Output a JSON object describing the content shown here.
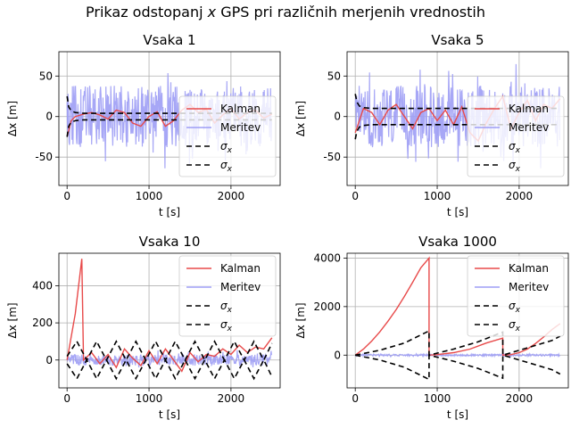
{
  "figure": {
    "title_pre": "Prikaz odstopanj ",
    "title_var": "x",
    "title_post": " GPS pri različnih merjenih vrednostih"
  },
  "chart_data": [
    {
      "type": "line",
      "title": "Vsaka 1",
      "xlabel": "t [s]",
      "ylabel": "Δx [m]",
      "xlim": [
        -100,
        2600
      ],
      "ylim": [
        -85,
        80
      ],
      "xticks": [
        0,
        1000,
        2000
      ],
      "yticks": [
        -50,
        0,
        50
      ],
      "grid": true,
      "legend_position": "right",
      "legend": [
        "Kalman",
        "Meritev",
        "σx",
        "σx"
      ],
      "meritev_amplitude": 38,
      "series": [
        {
          "name": "Kalman",
          "x": [
            0,
            50,
            100,
            200,
            300,
            400,
            500,
            600,
            700,
            800,
            900,
            1000,
            1100,
            1200,
            1300,
            1400,
            1500,
            1600,
            1700,
            1800,
            1900,
            2000,
            2100,
            2200,
            2300,
            2400,
            2500
          ],
          "y": [
            -25,
            -5,
            0,
            3,
            5,
            2,
            -3,
            8,
            5,
            -8,
            -12,
            0,
            6,
            -12,
            -5,
            8,
            15,
            5,
            9,
            -8,
            2,
            10,
            -3,
            5,
            8,
            -2,
            3
          ]
        },
        {
          "name": "σx",
          "x": [
            0,
            20,
            50,
            100,
            200,
            500,
            1000,
            2000,
            2500
          ],
          "y": [
            25,
            12,
            7,
            5,
            4,
            4,
            4,
            4,
            4
          ]
        },
        {
          "name": "σx",
          "x": [
            0,
            20,
            50,
            100,
            200,
            500,
            1000,
            2000,
            2500
          ],
          "y": [
            -25,
            -12,
            -7,
            -5,
            -4,
            -4,
            -4,
            -4,
            -4
          ]
        }
      ]
    },
    {
      "type": "line",
      "title": "Vsaka 5",
      "xlabel": "t [s]",
      "ylabel": "Δx [m]",
      "xlim": [
        -100,
        2600
      ],
      "ylim": [
        -85,
        80
      ],
      "xticks": [
        0,
        1000,
        2000
      ],
      "yticks": [
        -50,
        0,
        50
      ],
      "grid": true,
      "legend_position": "right",
      "legend": [
        "Kalman",
        "Meritev",
        "σx",
        "σx"
      ],
      "meritev_amplitude": 38,
      "series": [
        {
          "name": "Kalman",
          "x": [
            0,
            100,
            200,
            300,
            400,
            500,
            600,
            700,
            800,
            900,
            1000,
            1100,
            1200,
            1300,
            1400,
            1500,
            1600,
            1700,
            1800,
            1900,
            2000,
            2100,
            2200,
            2300,
            2400,
            2500
          ],
          "y": [
            -20,
            10,
            5,
            -10,
            8,
            15,
            0,
            -15,
            5,
            10,
            -5,
            8,
            -10,
            12,
            -20,
            -30,
            -8,
            10,
            25,
            -15,
            5,
            20,
            -5,
            15,
            10,
            22
          ]
        },
        {
          "name": "σx",
          "x": [
            0,
            20,
            50,
            100,
            200,
            500,
            1000,
            2000,
            2500
          ],
          "y": [
            28,
            18,
            13,
            11,
            10,
            10,
            10,
            10,
            10
          ]
        },
        {
          "name": "σx",
          "x": [
            0,
            20,
            50,
            100,
            200,
            500,
            1000,
            2000,
            2500
          ],
          "y": [
            -28,
            -18,
            -13,
            -11,
            -10,
            -10,
            -10,
            -10,
            -10
          ]
        }
      ]
    },
    {
      "type": "line",
      "title": "Vsaka 10",
      "xlabel": "t [s]",
      "ylabel": "Δx [m]",
      "xlim": [
        -100,
        2600
      ],
      "ylim": [
        -150,
        575
      ],
      "xticks": [
        0,
        1000,
        2000
      ],
      "yticks": [
        0,
        200,
        400
      ],
      "grid": true,
      "legend_position": "upper right",
      "legend": [
        "Kalman",
        "Meritev",
        "σx",
        "σx"
      ],
      "meritev_amplitude": 30,
      "series": [
        {
          "name": "Kalman",
          "x": [
            0,
            100,
            180,
            200,
            300,
            400,
            500,
            600,
            700,
            800,
            900,
            1000,
            1100,
            1200,
            1300,
            1400,
            1500,
            1600,
            1700,
            1800,
            1900,
            2000,
            2100,
            2200,
            2300,
            2400,
            2500
          ],
          "y": [
            0,
            250,
            545,
            0,
            40,
            -20,
            30,
            -40,
            60,
            10,
            -30,
            50,
            -20,
            60,
            0,
            -60,
            40,
            -10,
            30,
            20,
            60,
            30,
            80,
            40,
            70,
            60,
            120
          ]
        },
        {
          "name": "σx",
          "x": [
            0,
            120,
            240,
            241,
            360,
            480,
            481,
            600,
            720,
            721,
            840,
            960,
            961,
            1080,
            1200,
            1201,
            1320,
            1440,
            1441,
            1560,
            1680,
            1681,
            1800,
            1920,
            1921,
            2040,
            2160,
            2161,
            2280,
            2400,
            2401,
            2500
          ],
          "y": [
            20,
            100,
            0,
            0,
            100,
            0,
            0,
            100,
            0,
            0,
            100,
            0,
            0,
            100,
            0,
            0,
            100,
            0,
            0,
            100,
            0,
            0,
            100,
            0,
            0,
            100,
            0,
            0,
            100,
            0,
            0,
            90
          ]
        },
        {
          "name": "σx",
          "x": [
            0,
            120,
            240,
            241,
            360,
            480,
            481,
            600,
            720,
            721,
            840,
            960,
            961,
            1080,
            1200,
            1201,
            1320,
            1440,
            1441,
            1560,
            1680,
            1681,
            1800,
            1920,
            1921,
            2040,
            2160,
            2161,
            2280,
            2400,
            2401,
            2500
          ],
          "y": [
            -20,
            -100,
            0,
            0,
            -100,
            0,
            0,
            -100,
            0,
            0,
            -100,
            0,
            0,
            -100,
            0,
            0,
            -100,
            0,
            0,
            -100,
            0,
            0,
            -100,
            0,
            0,
            -100,
            0,
            0,
            -100,
            0,
            0,
            -90
          ]
        }
      ]
    },
    {
      "type": "line",
      "title": "Vsaka 1000",
      "xlabel": "t [s]",
      "ylabel": "Δx [m]",
      "xlim": [
        -100,
        2600
      ],
      "ylim": [
        -1350,
        4200
      ],
      "xticks": [
        0,
        1000,
        2000
      ],
      "yticks": [
        0,
        2000,
        4000
      ],
      "grid": true,
      "legend_position": "upper right",
      "legend": [
        "Kalman",
        "Meritev",
        "σx",
        "σx"
      ],
      "meritev_amplitude": 40,
      "series": [
        {
          "name": "Kalman",
          "x": [
            0,
            100,
            200,
            300,
            400,
            500,
            600,
            700,
            800,
            900,
            901,
            1000,
            1200,
            1400,
            1600,
            1800,
            1801,
            1900,
            2000,
            2100,
            2200,
            2300,
            2400,
            2500
          ],
          "y": [
            0,
            250,
            580,
            960,
            1400,
            1880,
            2420,
            3000,
            3600,
            4000,
            0,
            20,
            100,
            250,
            500,
            700,
            0,
            20,
            100,
            250,
            480,
            750,
            1050,
            1300
          ]
        },
        {
          "name": "σx",
          "x": [
            0,
            300,
            600,
            900,
            901,
            1200,
            1500,
            1800,
            1801,
            2100,
            2400,
            2500
          ],
          "y": [
            0,
            200,
            500,
            1000,
            0,
            250,
            550,
            950,
            0,
            300,
            600,
            780
          ]
        },
        {
          "name": "σx",
          "x": [
            0,
            300,
            600,
            900,
            901,
            1200,
            1500,
            1800,
            1801,
            2100,
            2400,
            2500
          ],
          "y": [
            0,
            -200,
            -500,
            -1000,
            0,
            -250,
            -550,
            -950,
            0,
            -300,
            -600,
            -780
          ]
        }
      ]
    }
  ]
}
